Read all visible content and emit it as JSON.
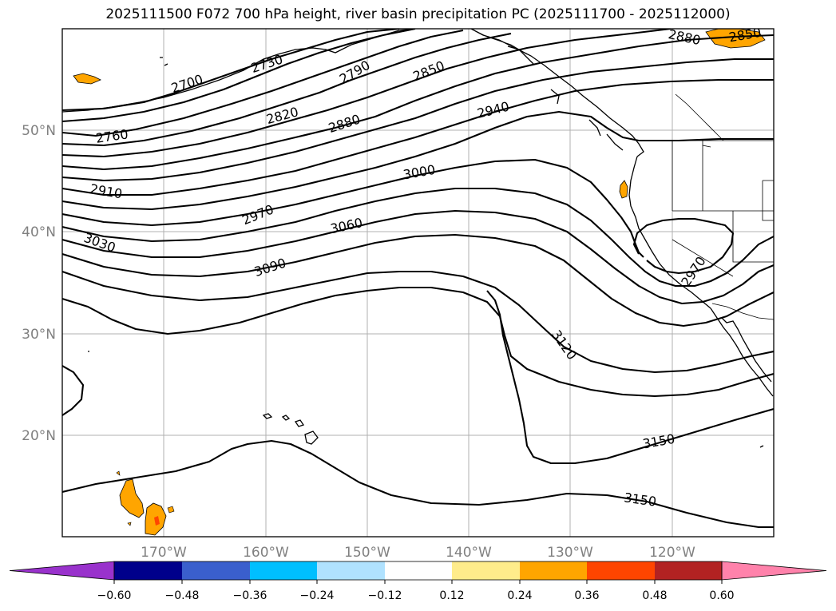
{
  "title": "2025111500 F072 700 hPa height, river basin precipitation PC (2025111700 - 2025112000)",
  "lat_labels": [
    "50°N",
    "40°N",
    "30°N",
    "20°N"
  ],
  "lon_labels": [
    "170°W",
    "160°W",
    "150°W",
    "140°W",
    "130°W",
    "120°W"
  ],
  "contour_labels": [
    "2700",
    "2730",
    "2760",
    "2790",
    "2820",
    "2850",
    "2850",
    "2880",
    "2880",
    "2910",
    "2940",
    "2970",
    "2970",
    "3000",
    "3030",
    "3060",
    "3090",
    "3120",
    "3150",
    "3150"
  ],
  "colorbar": {
    "tick_labels": [
      "−0.60",
      "−0.48",
      "−0.36",
      "−0.24",
      "−0.12",
      "0.12",
      "0.24",
      "0.36",
      "0.48",
      "0.60"
    ],
    "colors": [
      "#9932cc",
      "#00008b",
      "#3a5fcd",
      "#00bfff",
      "#b0e2ff",
      "#ffffff",
      "#ffec8b",
      "#ffa500",
      "#ff4500",
      "#b22222",
      "#ff82ab"
    ]
  },
  "colors": {
    "frame": "#000000",
    "grid": "#b0b0b0",
    "positive_anomaly": "#ffa500",
    "strong_anomaly": "#ff4500"
  }
}
